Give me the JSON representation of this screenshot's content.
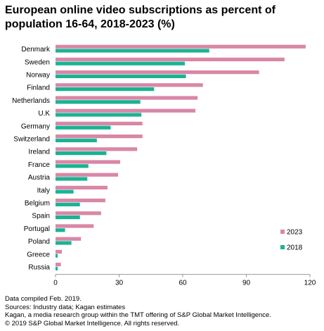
{
  "title": "European online video subscriptions as percent of population 16-64, 2018-2023 (%)",
  "chart_data": {
    "type": "bar",
    "orientation": "horizontal",
    "categories": [
      "Denmark",
      "Sweden",
      "Norway",
      "Finland",
      "Netherlands",
      "U.K",
      "Germany",
      "Switzerland",
      "Ireland",
      "France",
      "Austria",
      "Italy",
      "Belgium",
      "Spain",
      "Portugal",
      "Poland",
      "Greece",
      "Russia"
    ],
    "series": [
      {
        "name": "2023",
        "color": "#d987a6",
        "values": [
          118,
          108,
          96,
          69.5,
          67,
          66,
          41,
          41,
          38.5,
          30.5,
          29.5,
          24.5,
          23.5,
          21.5,
          18,
          12,
          3,
          2.5
        ]
      },
      {
        "name": "2018",
        "color": "#1ab394",
        "values": [
          72.5,
          61,
          61.5,
          46.5,
          40,
          40.5,
          26,
          19.5,
          24,
          15.5,
          15,
          8.5,
          11.5,
          11.5,
          4.5,
          7.5,
          1,
          1
        ]
      }
    ],
    "xlim": [
      0,
      120
    ],
    "xticks": [
      0,
      30,
      60,
      90,
      120
    ],
    "grid": false,
    "legend": "bottom-right"
  },
  "footer": [
    "Data compiled Feb. 2019.",
    "Sources: Industry data; Kagan estimates",
    "Kagan, a media research group within the TMT offering of S&P Global Market Intelligence.",
    "© 2019 S&P Global Market Intelligence. All rights reserved."
  ]
}
